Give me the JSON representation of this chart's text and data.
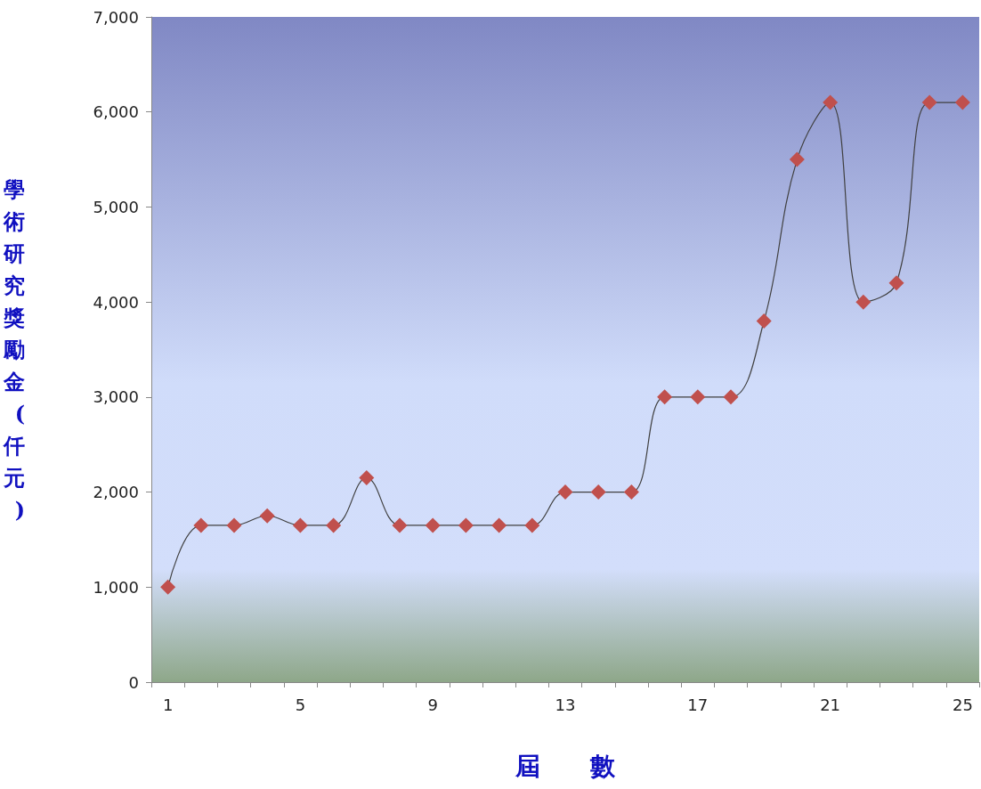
{
  "chart_data": {
    "type": "line",
    "xlabel": "屆　　數",
    "ylabel": "學術研究獎勵金(仟元)",
    "categories": [
      "1",
      null,
      null,
      null,
      "5",
      null,
      null,
      null,
      "9",
      null,
      null,
      null,
      "13",
      null,
      null,
      null,
      "17",
      null,
      null,
      null,
      "21",
      null,
      null,
      null,
      "25"
    ],
    "series": [
      {
        "color": "#c0504d",
        "values": [
          1000,
          1650,
          1650,
          1750,
          1650,
          1650,
          2150,
          1650,
          1650,
          1650,
          1650,
          1650,
          2000,
          2000,
          2000,
          3000,
          3000,
          3000,
          3800,
          5500,
          6100,
          4000,
          4200,
          6100,
          6100
        ]
      }
    ],
    "ylim": [
      0,
      7000
    ],
    "yticks": [
      {
        "value": 0,
        "label": "0"
      },
      {
        "value": 1000,
        "label": "1,000"
      },
      {
        "value": 2000,
        "label": "2,000"
      },
      {
        "value": 3000,
        "label": "3,000"
      },
      {
        "value": 4000,
        "label": "4,000"
      },
      {
        "value": 5000,
        "label": "5,000"
      },
      {
        "value": 6000,
        "label": "6,000"
      },
      {
        "value": 7000,
        "label": "7,000"
      }
    ],
    "marker": "diamond"
  }
}
